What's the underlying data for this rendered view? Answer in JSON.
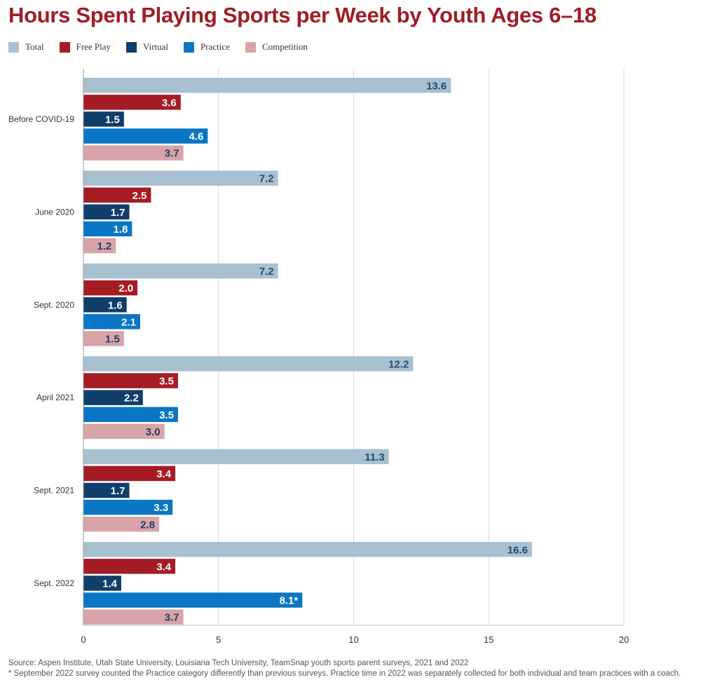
{
  "chart_data": {
    "type": "bar",
    "orientation": "horizontal",
    "title": "Hours Spent Playing Sports per Week by Youth Ages 6–18",
    "categories": [
      "Before COVID-19",
      "June 2020",
      "Sept. 2020",
      "April 2021",
      "Sept. 2021",
      "Sept. 2022"
    ],
    "series": [
      {
        "name": "Total",
        "color": "#a8c0d0",
        "label_color": "#1f4e79",
        "values": [
          13.6,
          7.2,
          7.2,
          12.2,
          11.3,
          16.6
        ],
        "labels": [
          "13.6",
          "7.2",
          "7.2",
          "12.2",
          "11.3",
          "16.6"
        ]
      },
      {
        "name": "Free Play",
        "color": "#a51c24",
        "label_color": "#ffffff",
        "values": [
          3.6,
          2.5,
          2.0,
          3.5,
          3.4,
          3.4
        ],
        "labels": [
          "3.6",
          "2.5",
          "2.0",
          "3.5",
          "3.4",
          "3.4"
        ]
      },
      {
        "name": "Virtual",
        "color": "#0f3e6b",
        "label_color": "#ffffff",
        "values": [
          1.5,
          1.7,
          1.6,
          2.2,
          1.7,
          1.4
        ],
        "labels": [
          "1.5",
          "1.7",
          "1.6",
          "2.2",
          "1.7",
          "1.4"
        ]
      },
      {
        "name": "Practice",
        "color": "#0a76c4",
        "label_color": "#ffffff",
        "values": [
          4.6,
          1.8,
          2.1,
          3.5,
          3.3,
          8.1
        ],
        "labels": [
          "4.6",
          "1.8",
          "2.1",
          "3.5",
          "3.3",
          "8.1*"
        ]
      },
      {
        "name": "Competition",
        "color": "#d9a4a8",
        "label_color": "#1f3f66",
        "values": [
          3.7,
          1.2,
          1.5,
          3.0,
          2.8,
          3.7
        ],
        "labels": [
          "3.7",
          "1.2",
          "1.5",
          "3.0",
          "2.8",
          "3.7"
        ]
      }
    ],
    "xlim": [
      0,
      20
    ],
    "xticks": [
      0,
      5,
      10,
      15,
      20
    ],
    "grid": true,
    "legend_position": "top-left"
  },
  "footer": {
    "source": "Source: Aspen Institute, Utah State University, Louisiana Tech University, TeamSnap youth sports parent surveys, 2021 and 2022",
    "note": "* September 2022 survey counted the Practice category differently than previous surveys. Practice time in 2022 was separately collected for both individual and team practices with a coach."
  }
}
